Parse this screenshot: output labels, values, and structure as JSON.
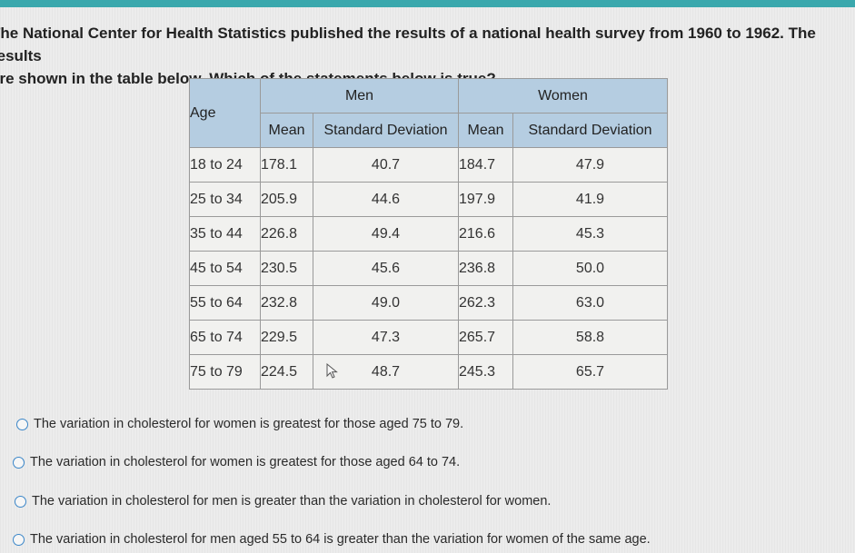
{
  "question": {
    "line1": "The National Center for Health Statistics published the results of a national health survey from 1960 to 1962. The results",
    "line2": "are shown in the table below. Which of the statements below is true?"
  },
  "table": {
    "age_header": "Age",
    "men_header": "Men",
    "women_header": "Women",
    "mean_label": "Mean",
    "sd_label": "Standard Deviation",
    "rows": [
      {
        "age": "18 to 24",
        "men_mean": "178.1",
        "men_sd": "40.7",
        "women_mean": "184.7",
        "women_sd": "47.9"
      },
      {
        "age": "25 to 34",
        "men_mean": "205.9",
        "men_sd": "44.6",
        "women_mean": "197.9",
        "women_sd": "41.9"
      },
      {
        "age": "35 to 44",
        "men_mean": "226.8",
        "men_sd": "49.4",
        "women_mean": "216.6",
        "women_sd": "45.3"
      },
      {
        "age": "45 to 54",
        "men_mean": "230.5",
        "men_sd": "45.6",
        "women_mean": "236.8",
        "women_sd": "50.0"
      },
      {
        "age": "55 to 64",
        "men_mean": "232.8",
        "men_sd": "49.0",
        "women_mean": "262.3",
        "women_sd": "63.0"
      },
      {
        "age": "65 to 74",
        "men_mean": "229.5",
        "men_sd": "47.3",
        "women_mean": "265.7",
        "women_sd": "58.8"
      },
      {
        "age": "75 to 79",
        "men_mean": "224.5",
        "men_sd": "48.7",
        "women_mean": "245.3",
        "women_sd": "65.7"
      }
    ]
  },
  "options": [
    "The variation in cholesterol for women is greatest for those aged 75 to 79.",
    "The variation in cholesterol for women is greatest for those aged 64 to 74.",
    "The variation in cholesterol for men is greater than the variation in cholesterol for women.",
    "The variation in cholesterol for men aged 55 to 64 is greater than the variation for women of the same age."
  ],
  "colors": {
    "header_bg": "#b5cde1",
    "top_bar": "#3aa8ad",
    "radio_border": "#3b86c8"
  }
}
